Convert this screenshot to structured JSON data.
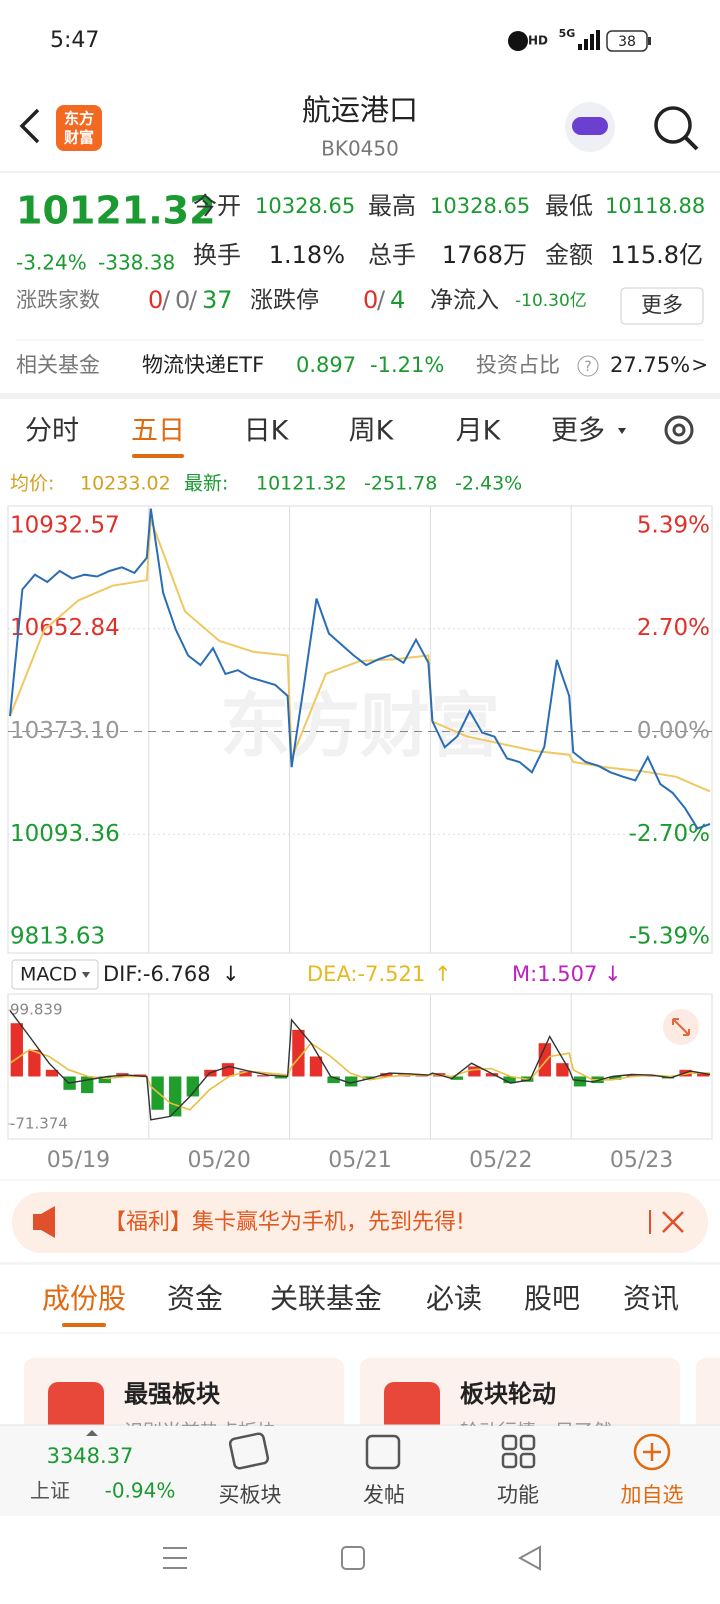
{
  "status": {
    "time": "5:47",
    "hd": "HD",
    "network": "5G",
    "battery": "38"
  },
  "header": {
    "logo": [
      "东方",
      "财富"
    ],
    "title": "航运港口",
    "code": "BK0450"
  },
  "quote": {
    "price": "10121.32",
    "change_pct": "-3.24%",
    "change": "-338.38",
    "fields": [
      {
        "label": "今开",
        "value": "10328.65"
      },
      {
        "label": "最高",
        "value": "10328.65"
      },
      {
        "label": "最低",
        "value": "10118.88"
      },
      {
        "label": "换手",
        "value": "1.18%"
      },
      {
        "label": "总手",
        "value": "1768万"
      },
      {
        "label": "金额",
        "value": "115.8亿"
      }
    ],
    "breadth": {
      "label": "涨跌家数",
      "up": "0",
      "sep1": "/",
      "flat": "0",
      "sep2": "/",
      "down": "37"
    },
    "limit": {
      "label": "涨跌停",
      "up": "0",
      "sep": "/",
      "down": "4"
    },
    "netflow": {
      "label": "净流入",
      "value": "-10.30亿"
    },
    "more": "更多"
  },
  "fund": {
    "label": "相关基金",
    "name": "物流快递ETF",
    "price": "0.897",
    "change": "-1.21%",
    "ratio_label": "投资占比",
    "help": "?",
    "ratio": "27.75%",
    "arrow": ">"
  },
  "tabs": {
    "items": [
      "分时",
      "五日",
      "日K",
      "周K",
      "月K",
      "更多"
    ],
    "active": 1
  },
  "info": {
    "avg_label": "均价:",
    "avg": "10233.02",
    "last_label": "最新:",
    "last": "10121.32",
    "change": "-251.78",
    "change_pct": "-2.43%"
  },
  "chart_data": {
    "type": "line",
    "watermark": "东方财富",
    "categories": [
      "05/19",
      "05/20",
      "05/21",
      "05/22",
      "05/23"
    ],
    "ylim": [
      9813.63,
      10932.57
    ],
    "yticks": [
      10932.57,
      10652.84,
      {
        "value": 10373.1,
        "label": "10373.10"
      },
      10093.36,
      9813.63
    ],
    "y2lim": [
      -5.39,
      5.39
    ],
    "y2ticks": [
      {
        "value": 5.39,
        "label": "5.39%"
      },
      {
        "value": 2.7,
        "label": "2.70%"
      },
      {
        "value": 0,
        "label": "0.00%"
      },
      {
        "value": -2.7,
        "label": "-2.70%"
      },
      {
        "value": -5.39,
        "label": "-5.39%"
      }
    ],
    "price": {
      "color": "#2a6db5",
      "days": [
        [
          10415,
          10760,
          10800,
          10780,
          10810,
          10790,
          10800,
          10795,
          10810,
          10820,
          10805,
          10846
        ],
        [
          10980,
          10750,
          10651,
          10580,
          10554,
          10600,
          10530,
          10540,
          10520,
          10510,
          10500,
          10470
        ],
        [
          10276,
          10500,
          10735,
          10640,
          10610,
          10580,
          10554,
          10570,
          10582,
          10560,
          10623,
          10560
        ],
        [
          10401,
          10330,
          10360,
          10429,
          10370,
          10359,
          10300,
          10290,
          10262,
          10331,
          10568,
          10470
        ],
        [
          10317,
          10290,
          10280,
          10262,
          10250,
          10240,
          10303,
          10230,
          10206,
          10164,
          10109,
          10121.32
        ]
      ]
    },
    "avg": {
      "color": "#f0c860",
      "days": [
        [
          10415,
          10650,
          10730,
          10770,
          10785
        ],
        [
          10950,
          10700,
          10620,
          10590,
          10580
        ],
        [
          10300,
          10530,
          10565,
          10570,
          10580
        ],
        [
          10400,
          10360,
          10340,
          10320,
          10310
        ],
        [
          10290,
          10275,
          10265,
          10250,
          10210
        ]
      ]
    },
    "macd": {
      "label": "MACD",
      "dif": "DIF:-6.768",
      "dif_arrow": "↓",
      "dea": "DEA:-7.521",
      "dea_arrow": "↑",
      "m": "M:1.507",
      "m_arrow": "↓",
      "ylim": [
        -71.374,
        99.839
      ],
      "yticks": [
        99.839,
        -71.374
      ],
      "up_color": "#e8302a",
      "down_color": "#1f9e2c",
      "dif_color": "#333333",
      "dea_color": "#e8c040",
      "hist": [
        [
          80,
          40,
          10,
          -20,
          -25,
          -10,
          5,
          3
        ],
        [
          -50,
          -60,
          -30,
          10,
          20,
          8,
          2,
          -3
        ],
        [
          70,
          30,
          -10,
          -15,
          -5,
          5,
          3,
          2
        ],
        [
          5,
          -5,
          15,
          5,
          -10,
          -8,
          50,
          20
        ],
        [
          -15,
          -10,
          -5,
          3,
          2,
          -3,
          10,
          5
        ]
      ],
      "dif_line": [
        [
          99,
          60,
          20,
          -10,
          -5,
          0,
          2,
          0
        ],
        [
          -65,
          -60,
          -30,
          5,
          15,
          8,
          2,
          0
        ],
        [
          85,
          50,
          0,
          -10,
          -3,
          5,
          4,
          2
        ],
        [
          5,
          -3,
          20,
          5,
          -10,
          -5,
          60,
          10
        ],
        [
          -5,
          -8,
          0,
          3,
          2,
          -2,
          8,
          3
        ]
      ],
      "dea_line": [
        [
          20,
          40,
          30,
          10,
          0,
          -3,
          0,
          0
        ],
        [
          -15,
          -40,
          -50,
          -20,
          0,
          8,
          5,
          2
        ],
        [
          15,
          50,
          30,
          5,
          -5,
          0,
          2,
          2
        ],
        [
          3,
          0,
          10,
          12,
          0,
          -5,
          30,
          35
        ],
        [
          10,
          -5,
          -5,
          0,
          2,
          0,
          5,
          5
        ]
      ]
    }
  },
  "banner": "【福利】集卡赢华为手机，先到先得!",
  "section_tabs": {
    "items": [
      "成份股",
      "资金",
      "关联基金",
      "必读",
      "股吧",
      "资讯"
    ],
    "active": 0
  },
  "cards": [
    {
      "title": "最强板块",
      "subtitle": "识别当前热点板块"
    },
    {
      "title": "板块轮动",
      "subtitle": "轮动行情一目了然"
    }
  ],
  "bottom": {
    "index_value": "3348.37",
    "index_name": "上证",
    "index_change": "-0.94%",
    "actions": [
      "买板块",
      "发帖",
      "功能",
      "加自选"
    ],
    "active_action": 3
  }
}
